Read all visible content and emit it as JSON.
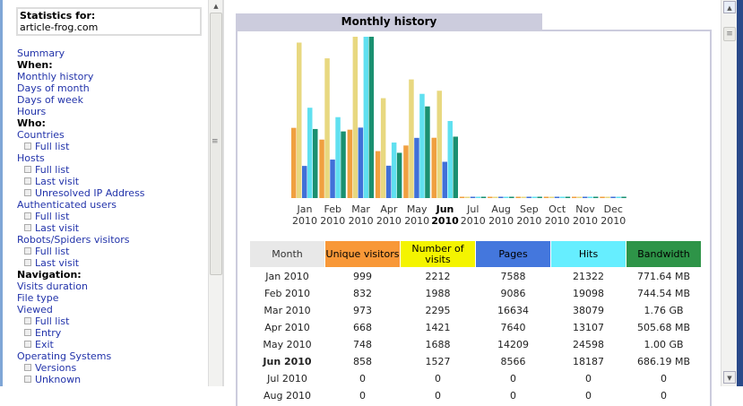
{
  "sidebar": {
    "stats_label": "Statistics for:",
    "site": "article-frog.com",
    "items": [
      {
        "t": "Summary",
        "k": "link"
      },
      {
        "t": "When:",
        "k": "head"
      },
      {
        "t": "Monthly history",
        "k": "link"
      },
      {
        "t": "Days of month",
        "k": "link"
      },
      {
        "t": "Days of week",
        "k": "link"
      },
      {
        "t": "Hours",
        "k": "link"
      },
      {
        "t": "Who:",
        "k": "head"
      },
      {
        "t": "Countries",
        "k": "link"
      },
      {
        "t": "Full list",
        "k": "sub"
      },
      {
        "t": "Hosts",
        "k": "link"
      },
      {
        "t": "Full list",
        "k": "sub"
      },
      {
        "t": "Last visit",
        "k": "sub"
      },
      {
        "t": "Unresolved IP Address",
        "k": "sub"
      },
      {
        "t": "Authenticated users",
        "k": "link"
      },
      {
        "t": "Full list",
        "k": "sub"
      },
      {
        "t": "Last visit",
        "k": "sub"
      },
      {
        "t": "Robots/Spiders visitors",
        "k": "link"
      },
      {
        "t": "Full list",
        "k": "sub"
      },
      {
        "t": "Last visit",
        "k": "sub"
      },
      {
        "t": "Navigation:",
        "k": "head"
      },
      {
        "t": "Visits duration",
        "k": "link"
      },
      {
        "t": "File type",
        "k": "link"
      },
      {
        "t": "Viewed",
        "k": "link"
      },
      {
        "t": "Full list",
        "k": "sub"
      },
      {
        "t": "Entry",
        "k": "sub"
      },
      {
        "t": "Exit",
        "k": "sub"
      },
      {
        "t": "Operating Systems",
        "k": "link"
      },
      {
        "t": "Versions",
        "k": "sub"
      },
      {
        "t": "Unknown",
        "k": "sub"
      }
    ]
  },
  "panel": {
    "title": "Monthly history"
  },
  "colors": {
    "visitors": "#f0a040",
    "visits": "#e8d880",
    "pages": "#4070d8",
    "hits": "#60e0f0",
    "bandwidth": "#1a9070"
  },
  "chart_data": {
    "type": "bar",
    "title": "Monthly history",
    "categories": [
      [
        "Jan",
        "2010"
      ],
      [
        "Feb",
        "2010"
      ],
      [
        "Mar",
        "2010"
      ],
      [
        "Apr",
        "2010"
      ],
      [
        "May",
        "2010"
      ],
      [
        "Jun",
        "2010"
      ],
      [
        "Jul",
        "2010"
      ],
      [
        "Aug",
        "2010"
      ],
      [
        "Sep",
        "2010"
      ],
      [
        "Oct",
        "2010"
      ],
      [
        "Nov",
        "2010"
      ],
      [
        "Dec",
        "2010"
      ]
    ],
    "current_index": 5,
    "series": [
      {
        "name": "Unique visitors",
        "key": "visitors",
        "values": [
          999,
          832,
          973,
          668,
          748,
          858,
          0,
          0,
          0,
          0,
          0,
          0
        ]
      },
      {
        "name": "Number of visits",
        "key": "visits",
        "values": [
          2212,
          1988,
          2295,
          1421,
          1688,
          1527,
          0,
          0,
          0,
          0,
          0,
          0
        ]
      },
      {
        "name": "Pages",
        "key": "pages",
        "values": [
          7588,
          9086,
          16634,
          7640,
          14209,
          8566,
          0,
          0,
          0,
          0,
          0,
          0
        ]
      },
      {
        "name": "Hits",
        "key": "hits",
        "values": [
          21322,
          19098,
          38079,
          13107,
          24598,
          18187,
          0,
          0,
          0,
          0,
          0,
          0
        ]
      },
      {
        "name": "Bandwidth (MB)",
        "key": "bandwidth",
        "values": [
          771.64,
          744.54,
          1802.24,
          505.68,
          1024,
          686.19,
          0,
          0,
          0,
          0,
          0,
          0
        ]
      }
    ]
  },
  "table": {
    "headers": [
      "Month",
      "Unique visitors",
      "Number of visits",
      "Pages",
      "Hits",
      "Bandwidth"
    ],
    "header_colors": [
      "#e8e8e8",
      "#f89838",
      "#f4f400",
      "#4477dd",
      "#66eeff",
      "#2e9448"
    ],
    "rows": [
      [
        "Jan 2010",
        "999",
        "2212",
        "7588",
        "21322",
        "771.64 MB"
      ],
      [
        "Feb 2010",
        "832",
        "1988",
        "9086",
        "19098",
        "744.54 MB"
      ],
      [
        "Mar 2010",
        "973",
        "2295",
        "16634",
        "38079",
        "1.76 GB"
      ],
      [
        "Apr 2010",
        "668",
        "1421",
        "7640",
        "13107",
        "505.68 MB"
      ],
      [
        "May 2010",
        "748",
        "1688",
        "14209",
        "24598",
        "1.00 GB"
      ],
      [
        "Jun 2010",
        "858",
        "1527",
        "8566",
        "18187",
        "686.19 MB"
      ],
      [
        "Jul 2010",
        "0",
        "0",
        "0",
        "0",
        "0"
      ],
      [
        "Aug 2010",
        "0",
        "0",
        "0",
        "0",
        "0"
      ]
    ]
  }
}
